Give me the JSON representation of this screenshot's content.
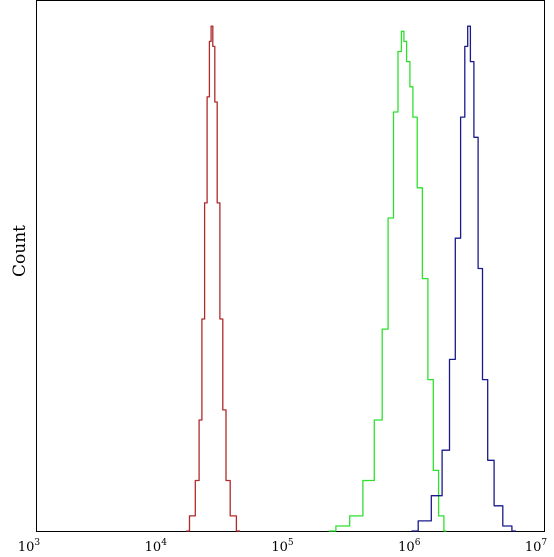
{
  "chart_data": {
    "type": "line",
    "title": "",
    "xlabel": "",
    "ylabel": "Count",
    "x_scale": "log",
    "xlim": [
      1000,
      10000000
    ],
    "ylim": [
      0,
      1.05
    ],
    "x_ticks": [
      {
        "base": "10",
        "exp": "3",
        "value": 1000
      },
      {
        "base": "10",
        "exp": "4",
        "value": 10000
      },
      {
        "base": "10",
        "exp": "5",
        "value": 100000
      },
      {
        "base": "10",
        "exp": "6",
        "value": 1000000
      },
      {
        "base": "10",
        "exp": "7",
        "value": 10000000
      }
    ],
    "grid": false,
    "legend": false,
    "series": [
      {
        "color": "#b02a2a",
        "points": [
          [
            15000,
            0
          ],
          [
            17000,
            0.03
          ],
          [
            18500,
            0.1
          ],
          [
            19500,
            0.22
          ],
          [
            20500,
            0.42
          ],
          [
            21500,
            0.65
          ],
          [
            22500,
            0.86
          ],
          [
            23300,
            0.97
          ],
          [
            24000,
            1.0
          ],
          [
            24800,
            0.96
          ],
          [
            25800,
            0.85
          ],
          [
            27000,
            0.65
          ],
          [
            28500,
            0.42
          ],
          [
            30000,
            0.24
          ],
          [
            32000,
            0.1
          ],
          [
            35000,
            0.03
          ],
          [
            40000,
            0
          ]
        ]
      },
      {
        "color": "#2ee02e",
        "points": [
          [
            200000,
            0
          ],
          [
            260000,
            0.01
          ],
          [
            330000,
            0.03
          ],
          [
            420000,
            0.1
          ],
          [
            500000,
            0.22
          ],
          [
            560000,
            0.4
          ],
          [
            620000,
            0.62
          ],
          [
            680000,
            0.83
          ],
          [
            730000,
            0.95
          ],
          [
            770000,
            0.99
          ],
          [
            800000,
            0.97
          ],
          [
            850000,
            0.93
          ],
          [
            900000,
            0.88
          ],
          [
            950000,
            0.82
          ],
          [
            1050000,
            0.68
          ],
          [
            1150000,
            0.5
          ],
          [
            1280000,
            0.3
          ],
          [
            1400000,
            0.12
          ],
          [
            1550000,
            0.03
          ],
          [
            1700000,
            0
          ]
        ]
      },
      {
        "color": "#1a1a8c",
        "points": [
          [
            900000,
            0
          ],
          [
            1150000,
            0.02
          ],
          [
            1450000,
            0.07
          ],
          [
            1700000,
            0.16
          ],
          [
            1900000,
            0.34
          ],
          [
            2100000,
            0.58
          ],
          [
            2300000,
            0.82
          ],
          [
            2450000,
            0.96
          ],
          [
            2550000,
            1.0
          ],
          [
            2700000,
            0.93
          ],
          [
            2900000,
            0.78
          ],
          [
            3150000,
            0.52
          ],
          [
            3400000,
            0.3
          ],
          [
            3800000,
            0.14
          ],
          [
            4300000,
            0.05
          ],
          [
            5200000,
            0.01
          ],
          [
            6000000,
            0
          ]
        ]
      }
    ]
  }
}
